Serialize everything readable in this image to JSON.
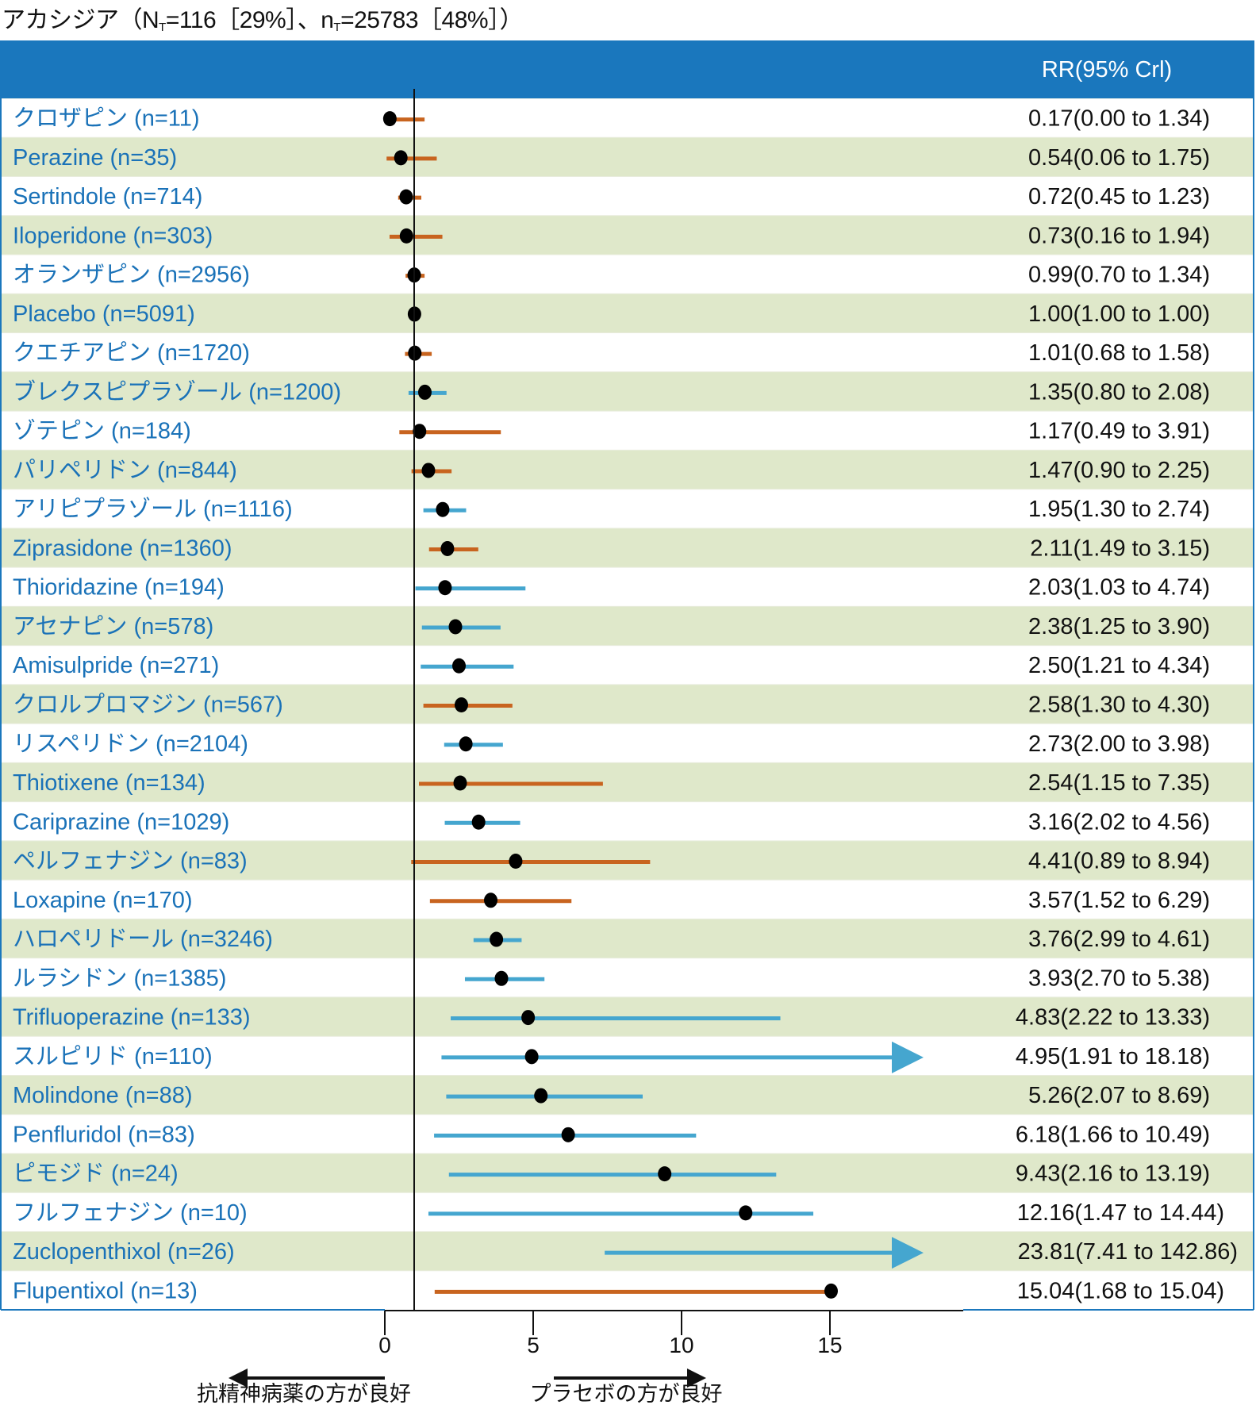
{
  "title": {
    "outcome": "アカシジア",
    "N_label": "N",
    "N_sub": "T",
    "N_value": "=116［29%］、",
    "n_label": "n",
    "n_sub": "T",
    "n_value": "=25783［48%］）",
    "open_paren": "（"
  },
  "header": {
    "rr_column": "RR(95% Crl)"
  },
  "colors": {
    "header_bg": "#1a77bd",
    "stripe": "#dfe8ca",
    "label_text": "#1a72b8",
    "orange": "#c8641f",
    "blue": "#45a6cf",
    "point": "#000000",
    "border": "#1a77bd"
  },
  "axis": {
    "ticks": [
      "0",
      "5",
      "10",
      "15"
    ],
    "left_direction": "抗精神病薬の方が良好",
    "right_direction": "プラセボの方が良好"
  },
  "chart_data": {
    "type": "forest",
    "title": "アカシジア（NT=116［29%］、nT=25783［48%］）",
    "xlabel": "RR",
    "xlim": [
      -1.3,
      17.7
    ],
    "xticks": [
      0,
      5,
      10,
      15
    ],
    "reference_line": 1,
    "legend": "none",
    "rows": [
      {
        "label": "クロザピン (n=11)",
        "rr": 0.17,
        "lo": 0.0,
        "hi": 1.34,
        "text": "0.17(0.00 to 1.34)",
        "color": "orange"
      },
      {
        "label": "Perazine (n=35)",
        "rr": 0.54,
        "lo": 0.06,
        "hi": 1.75,
        "text": "0.54(0.06 to 1.75)",
        "color": "orange"
      },
      {
        "label": "Sertindole (n=714)",
        "rr": 0.72,
        "lo": 0.45,
        "hi": 1.23,
        "text": "0.72(0.45 to 1.23)",
        "color": "orange"
      },
      {
        "label": "Iloperidone (n=303)",
        "rr": 0.73,
        "lo": 0.16,
        "hi": 1.94,
        "text": "0.73(0.16 to 1.94)",
        "color": "orange"
      },
      {
        "label": "オランザピン (n=2956)",
        "rr": 0.99,
        "lo": 0.7,
        "hi": 1.34,
        "text": "0.99(0.70 to 1.34)",
        "color": "orange"
      },
      {
        "label": "Placebo (n=5091)",
        "rr": 1.0,
        "lo": 1.0,
        "hi": 1.0,
        "text": "1.00(1.00 to 1.00)",
        "color": "orange"
      },
      {
        "label": "クエチアピン (n=1720)",
        "rr": 1.01,
        "lo": 0.68,
        "hi": 1.58,
        "text": "1.01(0.68 to 1.58)",
        "color": "orange"
      },
      {
        "label": "ブレクスピプラゾール (n=1200)",
        "rr": 1.35,
        "lo": 0.8,
        "hi": 2.08,
        "text": "1.35(0.80 to 2.08)",
        "color": "blue"
      },
      {
        "label": "ゾテピン (n=184)",
        "rr": 1.17,
        "lo": 0.49,
        "hi": 3.91,
        "text": "1.17(0.49 to 3.91)",
        "color": "orange"
      },
      {
        "label": "パリペリドン (n=844)",
        "rr": 1.47,
        "lo": 0.9,
        "hi": 2.25,
        "text": "1.47(0.90 to 2.25)",
        "color": "orange"
      },
      {
        "label": "アリピプラゾール (n=1116)",
        "rr": 1.95,
        "lo": 1.3,
        "hi": 2.74,
        "text": "1.95(1.30 to 2.74)",
        "color": "blue"
      },
      {
        "label": "Ziprasidone (n=1360)",
        "rr": 2.11,
        "lo": 1.49,
        "hi": 3.15,
        "text": "2.11(1.49 to 3.15)",
        "color": "orange"
      },
      {
        "label": "Thioridazine (n=194)",
        "rr": 2.03,
        "lo": 1.03,
        "hi": 4.74,
        "text": "2.03(1.03 to 4.74)",
        "color": "blue"
      },
      {
        "label": "アセナピン (n=578)",
        "rr": 2.38,
        "lo": 1.25,
        "hi": 3.9,
        "text": "2.38(1.25 to 3.90)",
        "color": "blue"
      },
      {
        "label": "Amisulpride (n=271)",
        "rr": 2.5,
        "lo": 1.21,
        "hi": 4.34,
        "text": "2.50(1.21 to 4.34)",
        "color": "blue"
      },
      {
        "label": "クロルプロマジン (n=567)",
        "rr": 2.58,
        "lo": 1.3,
        "hi": 4.3,
        "text": "2.58(1.30 to 4.30)",
        "color": "orange"
      },
      {
        "label": "リスペリドン (n=2104)",
        "rr": 2.73,
        "lo": 2.0,
        "hi": 3.98,
        "text": "2.73(2.00 to 3.98)",
        "color": "blue"
      },
      {
        "label": "Thiotixene (n=134)",
        "rr": 2.54,
        "lo": 1.15,
        "hi": 7.35,
        "text": "2.54(1.15 to 7.35)",
        "color": "orange"
      },
      {
        "label": "Cariprazine (n=1029)",
        "rr": 3.16,
        "lo": 2.02,
        "hi": 4.56,
        "text": "3.16(2.02 to 4.56)",
        "color": "blue"
      },
      {
        "label": "ペルフェナジン (n=83)",
        "rr": 4.41,
        "lo": 0.89,
        "hi": 8.94,
        "text": "4.41(0.89 to 8.94)",
        "color": "orange"
      },
      {
        "label": "Loxapine (n=170)",
        "rr": 3.57,
        "lo": 1.52,
        "hi": 6.29,
        "text": "3.57(1.52 to 6.29)",
        "color": "orange"
      },
      {
        "label": "ハロペリドール (n=3246)",
        "rr": 3.76,
        "lo": 2.99,
        "hi": 4.61,
        "text": "3.76(2.99 to 4.61)",
        "color": "blue"
      },
      {
        "label": "ルラシドン (n=1385)",
        "rr": 3.93,
        "lo": 2.7,
        "hi": 5.38,
        "text": "3.93(2.70 to 5.38)",
        "color": "blue"
      },
      {
        "label": "Trifluoperazine (n=133)",
        "rr": 4.83,
        "lo": 2.22,
        "hi": 13.33,
        "text": "4.83(2.22 to 13.33)",
        "color": "blue"
      },
      {
        "label": "スルピリド (n=110)",
        "rr": 4.95,
        "lo": 1.91,
        "hi": 18.18,
        "text": "4.95(1.91 to 18.18)",
        "color": "blue"
      },
      {
        "label": "Molindone (n=88)",
        "rr": 5.26,
        "lo": 2.07,
        "hi": 8.69,
        "text": "5.26(2.07 to 8.69)",
        "color": "blue"
      },
      {
        "label": "Penfluridol (n=83)",
        "rr": 6.18,
        "lo": 1.66,
        "hi": 10.49,
        "text": "6.18(1.66 to 10.49)",
        "color": "blue"
      },
      {
        "label": "ピモジド (n=24)",
        "rr": 9.43,
        "lo": 2.16,
        "hi": 13.19,
        "text": "9.43(2.16 to 13.19)",
        "color": "blue"
      },
      {
        "label": "フルフェナジン (n=10)",
        "rr": 12.16,
        "lo": 1.47,
        "hi": 14.44,
        "text": "12.16(1.47 to 14.44)",
        "color": "blue"
      },
      {
        "label": "Zuclopenthixol (n=26)",
        "rr": 23.81,
        "lo": 7.41,
        "hi": 142.86,
        "text": "23.81(7.41 to 142.86)",
        "color": "blue"
      },
      {
        "label": "Flupentixol (n=13)",
        "rr": 15.04,
        "lo": 1.68,
        "hi": 15.04,
        "text": "15.04(1.68 to 15.04)",
        "color": "orange"
      }
    ]
  }
}
